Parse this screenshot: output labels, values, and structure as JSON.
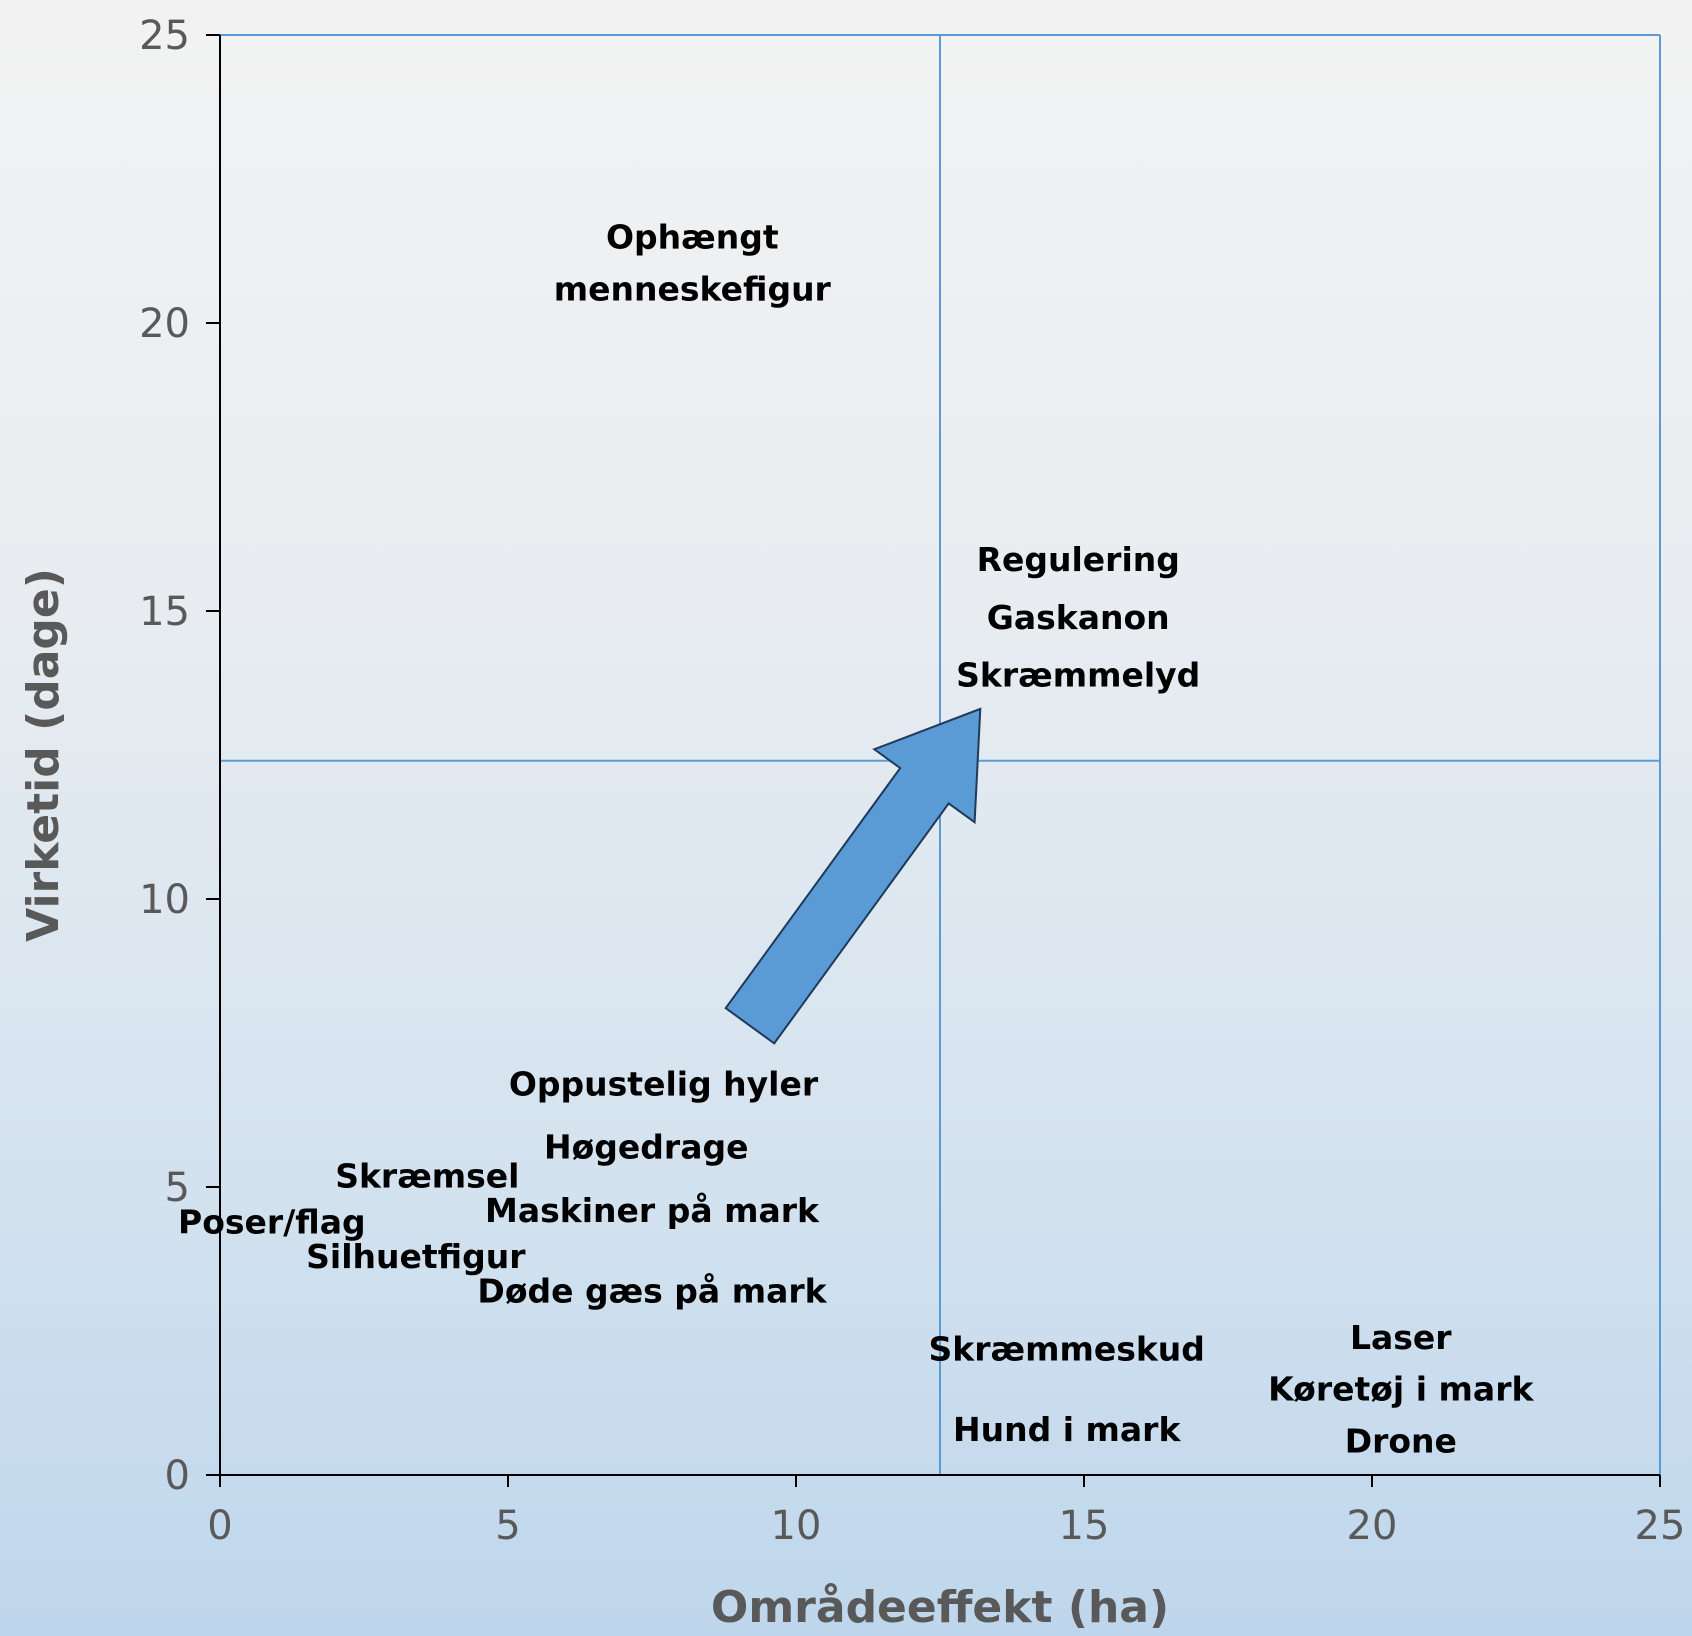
{
  "chart_data": {
    "type": "scatter",
    "title": "",
    "xlabel": "Områdeeffekt (ha)",
    "ylabel": "Virketid (dage)",
    "xlim": [
      0,
      25
    ],
    "ylim": [
      0,
      25
    ],
    "xticks": [
      "0",
      "5",
      "10",
      "15",
      "20",
      "25"
    ],
    "yticks": [
      "0",
      "5",
      "10",
      "15",
      "20",
      "25"
    ],
    "grid": false,
    "quadrant_lines": {
      "x": 12.5,
      "y": 12.4
    },
    "points": [
      {
        "label": "Ophængt",
        "x": 8.2,
        "y": 21.5
      },
      {
        "label": "menneskefigur",
        "x": 8.2,
        "y": 20.6
      },
      {
        "label": "Regulering",
        "x": 14.9,
        "y": 15.9
      },
      {
        "label": "Gaskanon",
        "x": 14.9,
        "y": 14.9
      },
      {
        "label": "Skræmmelyd",
        "x": 14.9,
        "y": 13.9
      },
      {
        "label": "Oppustelig hyler",
        "x": 7.7,
        "y": 6.8
      },
      {
        "label": "Høgedrage",
        "x": 7.4,
        "y": 5.7
      },
      {
        "label": "Skræmsel",
        "x": 3.6,
        "y": 5.2
      },
      {
        "label": "Maskiner på mark",
        "x": 7.5,
        "y": 4.6
      },
      {
        "label": "Poser/flag",
        "x": 0.9,
        "y": 4.4
      },
      {
        "label": "Silhuetfigur",
        "x": 3.4,
        "y": 3.8
      },
      {
        "label": "Døde gæs på mark",
        "x": 7.5,
        "y": 3.2
      },
      {
        "label": "Skræmmeskud",
        "x": 14.7,
        "y": 2.2
      },
      {
        "label": "Hund i mark",
        "x": 14.7,
        "y": 0.8
      },
      {
        "label": "Laser",
        "x": 20.5,
        "y": 2.4
      },
      {
        "label": "Køretøj i mark",
        "x": 20.5,
        "y": 1.5
      },
      {
        "label": "Drone",
        "x": 20.5,
        "y": 0.6
      }
    ],
    "annotations": [
      {
        "type": "arrow",
        "from": [
          9.2,
          7.8
        ],
        "to": [
          13.2,
          13.3
        ],
        "color": "#5b9bd5"
      }
    ],
    "colors": {
      "axis": "#000000",
      "quadrant": "#5b9bd5",
      "arrow_fill": "#5b9bd5",
      "arrow_stroke": "#1f3a5a"
    }
  }
}
